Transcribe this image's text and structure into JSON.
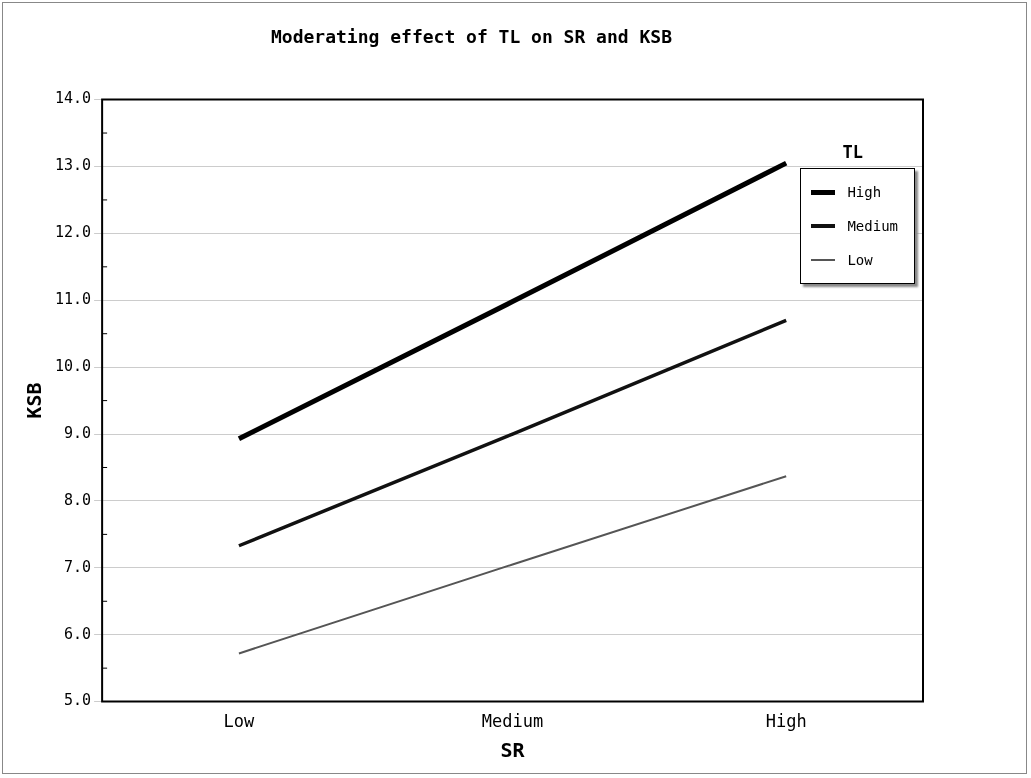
{
  "chart_data": {
    "type": "line",
    "title": "Moderating effect of TL on SR and KSB",
    "xlabel": "SR",
    "ylabel": "KSB",
    "legend_title": "TL",
    "categories": [
      "Low",
      "Medium",
      "High"
    ],
    "series": [
      {
        "name": "High",
        "color": "#000000",
        "values": [
          8.93,
          10.98,
          13.05
        ]
      },
      {
        "name": "Medium",
        "color": "#111111",
        "values": [
          7.33,
          9.0,
          10.7
        ]
      },
      {
        "name": "Low",
        "color": "#555555",
        "values": [
          5.72,
          7.05,
          8.37
        ]
      }
    ],
    "ylim": [
      5.0,
      14.0
    ],
    "yticks": [
      {
        "value": 5,
        "label": "5.0"
      },
      {
        "value": 6,
        "label": "6.0"
      },
      {
        "value": 7,
        "label": "7.0"
      },
      {
        "value": 8,
        "label": "8.0"
      },
      {
        "value": 9,
        "label": "9.0"
      },
      {
        "value": 10,
        "label": "10.0"
      },
      {
        "value": 11,
        "label": "11.0"
      },
      {
        "value": 12,
        "label": "12.0"
      },
      {
        "value": 13,
        "label": "13.0"
      },
      {
        "value": 14,
        "label": "14.0"
      }
    ],
    "grid": "y",
    "legend": "top right",
    "marker": "none",
    "line_style": "solid"
  }
}
